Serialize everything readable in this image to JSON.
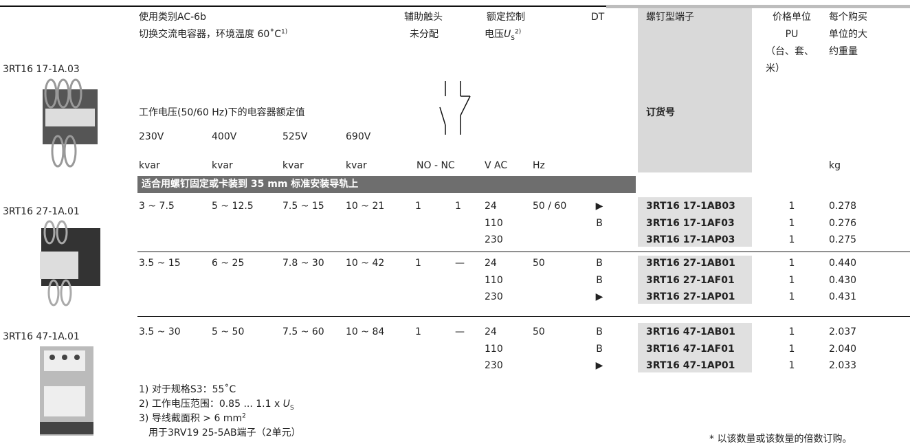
{
  "header": {
    "usage_category": "使用类别AC-6b",
    "usage_desc": {
      "text": "切换交流电容器，环境温度 60˚C",
      "sup": "1)"
    },
    "aux_contacts": "辅助触头",
    "aux_unassigned": "未分配",
    "rated_control": "额定控制",
    "control_voltage": {
      "text": "电压",
      "var": "U",
      "sub": "S",
      "sup": "2)"
    },
    "dt": "DT",
    "screw_terminal": "螺钉型端子",
    "order_no": "订货号",
    "price_unit": [
      "价格单位",
      "PU",
      "（台、套、",
      "米）"
    ],
    "weight": [
      "每个购买",
      "单位的大",
      "约重量"
    ],
    "rated_capacitor": "工作电压(50/60 Hz)下的电容器额定值",
    "voltages": [
      "230V",
      "400V",
      "525V",
      "690V"
    ],
    "kvar_units": [
      "kvar",
      "kvar",
      "kvar",
      "kvar"
    ],
    "contacts_unit": "NO - NC",
    "vac_unit": "V AC",
    "hz_unit": "Hz",
    "kg_unit": "kg"
  },
  "image_labels": [
    "3RT16 17-1A.03",
    "3RT16 27-1A.01",
    "3RT16 47-1A.01"
  ],
  "section": "适合用螺钉固定或卡装到 35 mm 标准安装导轨上",
  "groups": [
    {
      "kvar": [
        "3 ~ 7.5",
        "5 ~ 12.5",
        "7.5 ~ 15",
        "10 ~ 21"
      ],
      "no": "1",
      "nc": "1",
      "hz": "50 / 60",
      "voltages": [
        "24",
        "110",
        "230"
      ],
      "dt": [
        "▶",
        "B",
        ""
      ],
      "orders": [
        "3RT16 17-1AB03",
        "3RT16 17-1AF03",
        "3RT16 17-1AP03"
      ],
      "pu": [
        "1",
        "1",
        "1"
      ],
      "weights": [
        "0.278",
        "0.276",
        "0.275"
      ]
    },
    {
      "kvar": [
        "3.5 ~ 15",
        "6 ~ 25",
        "7.8 ~ 30",
        "10 ~ 42"
      ],
      "no": "1",
      "nc": "—",
      "hz": "50",
      "voltages": [
        "24",
        "110",
        "230"
      ],
      "dt": [
        "B",
        "B",
        "▶"
      ],
      "orders": [
        "3RT16 27-1AB01",
        "3RT16 27-1AF01",
        "3RT16 27-1AP01"
      ],
      "pu": [
        "1",
        "1",
        "1"
      ],
      "weights": [
        "0.440",
        "0.430",
        "0.431"
      ]
    },
    {
      "kvar": [
        "3.5 ~ 30",
        "5 ~ 50",
        "7.5 ~ 60",
        "10 ~ 84"
      ],
      "no": "1",
      "nc": "—",
      "hz": "50",
      "voltages": [
        "24",
        "110",
        "230"
      ],
      "dt": [
        "B",
        "B",
        "▶"
      ],
      "orders": [
        "3RT16 47-1AB01",
        "3RT16 47-1AF01",
        "3RT16 47-1AP01"
      ],
      "pu": [
        "1",
        "1",
        "1"
      ],
      "weights": [
        "2.037",
        "2.040",
        "2.033"
      ]
    }
  ],
  "footnotes": [
    {
      "text": "1) 对于规格S3：55˚C"
    },
    {
      "text": "2) 工作电压范围：0.85 ... 1.1 x ",
      "var": "U",
      "sub": "S"
    },
    {
      "text": "3) 导线截面积 > 6 mm",
      "sup": "2"
    },
    {
      "text": "用于3RV19 25-5AB端子（2单元）"
    }
  ],
  "order_note": "* 以该数量或该数量的倍数订购。"
}
